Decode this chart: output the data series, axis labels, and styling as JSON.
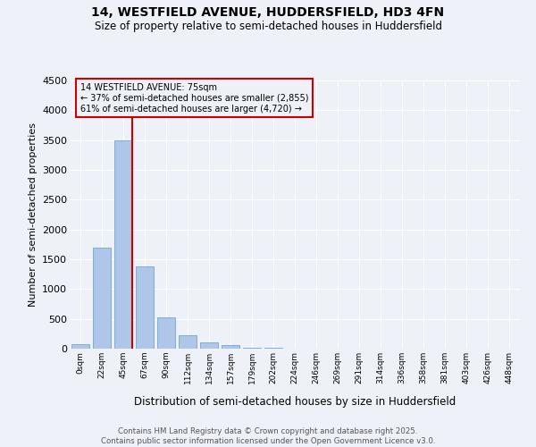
{
  "title1": "14, WESTFIELD AVENUE, HUDDERSFIELD, HD3 4FN",
  "title2": "Size of property relative to semi-detached houses in Huddersfield",
  "xlabel": "Distribution of semi-detached houses by size in Huddersfield",
  "ylabel": "Number of semi-detached properties",
  "bar_labels": [
    "0sqm",
    "22sqm",
    "45sqm",
    "67sqm",
    "90sqm",
    "112sqm",
    "134sqm",
    "157sqm",
    "179sqm",
    "202sqm",
    "224sqm",
    "246sqm",
    "269sqm",
    "291sqm",
    "314sqm",
    "336sqm",
    "358sqm",
    "381sqm",
    "403sqm",
    "426sqm",
    "448sqm"
  ],
  "bar_values": [
    75,
    1700,
    3500,
    1380,
    520,
    230,
    105,
    55,
    10,
    20,
    5,
    5,
    0,
    0,
    0,
    5,
    0,
    0,
    0,
    0,
    0
  ],
  "bar_color": "#aec6e8",
  "bar_edge_color": "#5a9fd4",
  "vline_x": 2.43,
  "vline_color": "#cc0000",
  "annotation_box_color": "#cc0000",
  "ylim": [
    0,
    4500
  ],
  "yticks": [
    0,
    500,
    1000,
    1500,
    2000,
    2500,
    3000,
    3500,
    4000,
    4500
  ],
  "bg_color": "#eef2f8",
  "grid_color": "#ffffff",
  "footer1": "Contains HM Land Registry data © Crown copyright and database right 2025.",
  "footer2": "Contains public sector information licensed under the Open Government Licence v3.0."
}
